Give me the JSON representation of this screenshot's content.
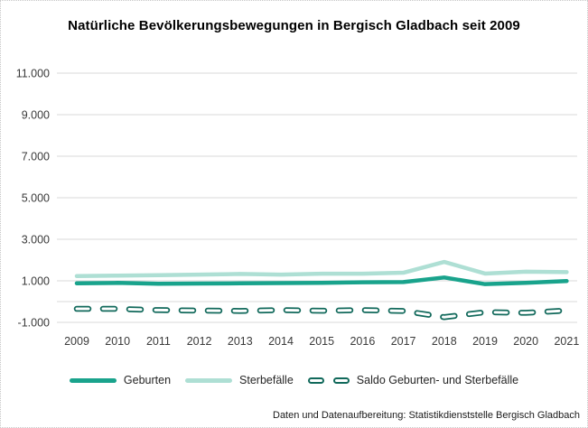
{
  "title": "Natürliche Bevölkerungsbewegungen in Bergisch Gladbach seit 2009",
  "source_note": "Daten und Datenaufbereitung: Statistikdienststelle Bergisch Gladbach",
  "colors": {
    "geburten": "#19A38C",
    "sterbefaelle": "#AEDFD4",
    "saldo": "#11695B",
    "gridline": "#D9D9D9",
    "axis_text": "#3A3A3A"
  },
  "chart_data": {
    "type": "line",
    "x": [
      "2009",
      "2010",
      "2011",
      "2012",
      "2013",
      "2014",
      "2015",
      "2016",
      "2017",
      "2018",
      "2019",
      "2020",
      "2021"
    ],
    "series": [
      {
        "name": "Geburten",
        "style": "solid",
        "color_key": "geburten",
        "values": [
          880,
          900,
          860,
          870,
          880,
          890,
          900,
          930,
          940,
          1160,
          840,
          900,
          990
        ]
      },
      {
        "name": "Sterbefälle",
        "style": "solid",
        "color_key": "sterbefaelle",
        "values": [
          1230,
          1250,
          1270,
          1300,
          1330,
          1300,
          1340,
          1340,
          1390,
          1910,
          1350,
          1440,
          1420
        ]
      },
      {
        "name": "Saldo Geburten- und Sterbefälle",
        "style": "dashed-hollow",
        "color_key": "saldo",
        "values": [
          -350,
          -350,
          -410,
          -430,
          -450,
          -410,
          -440,
          -410,
          -450,
          -750,
          -510,
          -540,
          -430
        ]
      }
    ],
    "y_axis": {
      "ticks": [
        {
          "value": 11000,
          "label": "11.000"
        },
        {
          "value": 9000,
          "label": "9.000"
        },
        {
          "value": 7000,
          "label": "7.000"
        },
        {
          "value": 5000,
          "label": "5.000"
        },
        {
          "value": 3000,
          "label": "3.000"
        },
        {
          "value": 1000,
          "label": "1.000"
        },
        {
          "value": -1000,
          "label": "-1.000"
        }
      ],
      "extra_gridlines": [
        0
      ]
    },
    "ylim": [
      -1000,
      11000
    ],
    "grid": true,
    "legend_position": "bottom"
  }
}
